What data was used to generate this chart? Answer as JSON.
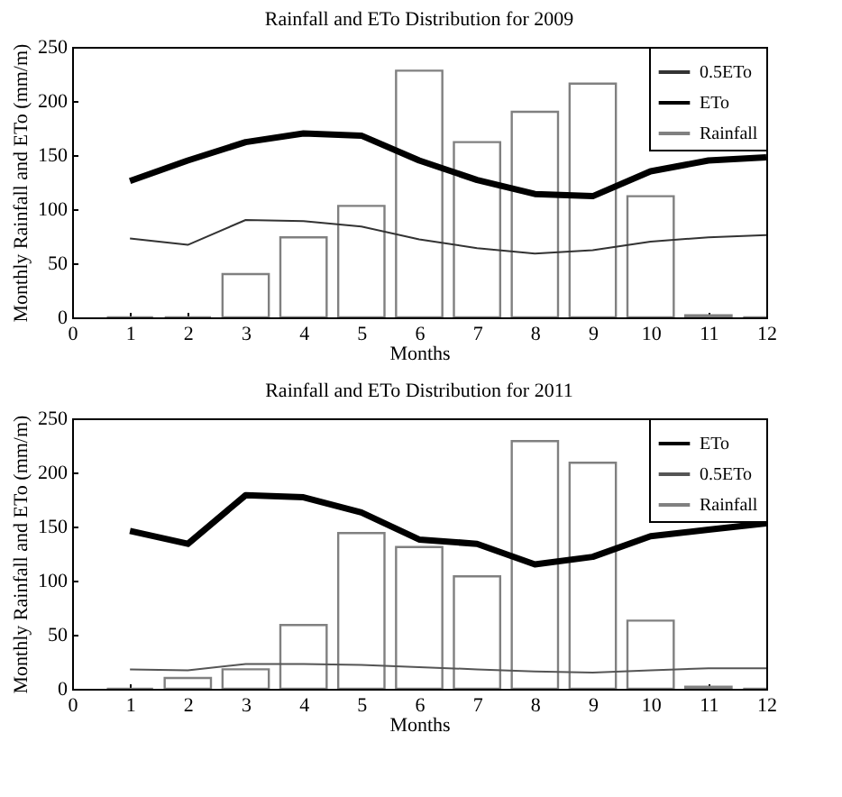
{
  "chart_data": [
    {
      "type": "bar",
      "title": "Rainfall and ETo Distribution for 2009",
      "xlabel": "Months",
      "ylabel": "Monthly Rainfall and ETo (mm/m)",
      "x": [
        1,
        2,
        3,
        4,
        5,
        6,
        7,
        8,
        9,
        10,
        11,
        12
      ],
      "xlim": [
        0,
        12
      ],
      "xticks": [
        0,
        1,
        2,
        3,
        4,
        5,
        6,
        7,
        8,
        9,
        10,
        11,
        12
      ],
      "ylim": [
        0,
        250
      ],
      "yticks": [
        0,
        50,
        100,
        150,
        200,
        250
      ],
      "legend": "top right",
      "series": [
        {
          "name": "0.5ETo",
          "type": "line",
          "color": "#333333",
          "values": [
            73,
            67,
            90,
            89,
            84,
            72,
            64,
            59,
            62,
            70,
            74,
            76
          ]
        },
        {
          "name": "ETo",
          "type": "line",
          "color": "#000000",
          "values": [
            126,
            145,
            162,
            170,
            168,
            145,
            127,
            114,
            112,
            135,
            145,
            148
          ]
        },
        {
          "name": "Rainfall",
          "type": "bar",
          "color": "#808080",
          "values": [
            0,
            0,
            40,
            74,
            103,
            228,
            162,
            190,
            216,
            112,
            2,
            0
          ]
        }
      ]
    },
    {
      "type": "bar",
      "title": "Rainfall and ETo Distribution for 2011",
      "xlabel": "Months",
      "ylabel": "Monthly Rainfall and ETo (mm/m)",
      "x": [
        1,
        2,
        3,
        4,
        5,
        6,
        7,
        8,
        9,
        10,
        11,
        12
      ],
      "xlim": [
        0,
        12
      ],
      "xticks": [
        0,
        1,
        2,
        3,
        4,
        5,
        6,
        7,
        8,
        9,
        10,
        11,
        12
      ],
      "ylim": [
        0,
        250
      ],
      "yticks": [
        0,
        50,
        100,
        150,
        200,
        250
      ],
      "legend": "top right",
      "series": [
        {
          "name": "ETo",
          "type": "line",
          "color": "#000000",
          "values": [
            146,
            134,
            179,
            177,
            163,
            138,
            134,
            115,
            122,
            141,
            147,
            153
          ]
        },
        {
          "name": "0.5ETo",
          "type": "line",
          "color": "#555555",
          "values": [
            18,
            17,
            23,
            23,
            22,
            20,
            18,
            16,
            15,
            17,
            19,
            19
          ]
        },
        {
          "name": "Rainfall",
          "type": "bar",
          "color": "#808080",
          "values": [
            0,
            10,
            18,
            59,
            144,
            131,
            104,
            229,
            209,
            63,
            2,
            0
          ]
        }
      ]
    }
  ]
}
